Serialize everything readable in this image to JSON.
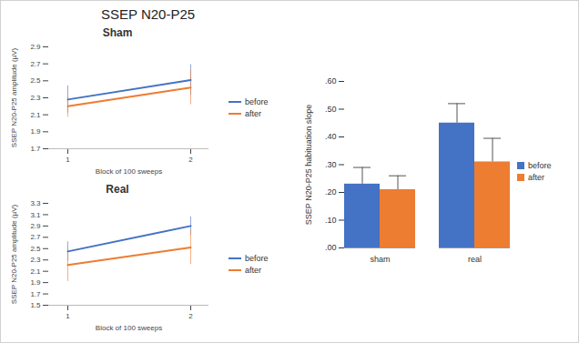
{
  "title": "SSEP N20-P25",
  "chart_data": [
    {
      "type": "line",
      "title": "Sham",
      "x_label": "Block of 100 sweeps",
      "y_label": "SSEP N20-P25 amplitude (µV)",
      "categories": [
        "1",
        "2"
      ],
      "series": [
        {
          "name": "before",
          "color": "#4472c4",
          "values": [
            2.28,
            2.51
          ],
          "errors": [
            0.16,
            0.18
          ]
        },
        {
          "name": "after",
          "color": "#ed7d31",
          "values": [
            2.2,
            2.42
          ],
          "errors": [
            0.13,
            0.2
          ]
        }
      ],
      "ylim": [
        1.7,
        2.9
      ],
      "yticks": [
        1.7,
        1.9,
        2.1,
        2.3,
        2.5,
        2.7,
        2.9
      ],
      "legend": "right"
    },
    {
      "type": "line",
      "title": "Real",
      "x_label": "Block of 100 sweeps",
      "y_label": "SSEP N20-P25 amplitude (µV)",
      "categories": [
        "1",
        "2"
      ],
      "series": [
        {
          "name": "before",
          "color": "#4472c4",
          "values": [
            2.45,
            2.9
          ],
          "errors": [
            0.17,
            0.16
          ]
        },
        {
          "name": "after",
          "color": "#ed7d31",
          "values": [
            2.21,
            2.52
          ],
          "errors": [
            0.29,
            0.3
          ]
        }
      ],
      "ylim": [
        1.5,
        3.3
      ],
      "yticks": [
        1.5,
        1.7,
        1.9,
        2.1,
        2.3,
        2.5,
        2.7,
        2.9,
        3.1,
        3.3
      ],
      "legend": "right"
    },
    {
      "type": "bar",
      "y_label": "SSEP N20-P25 habituation slope",
      "categories": [
        "sham",
        "real"
      ],
      "series": [
        {
          "name": "before",
          "color": "#4472c4",
          "values": [
            0.23,
            0.45
          ],
          "errors": [
            0.06,
            0.07
          ]
        },
        {
          "name": "after",
          "color": "#ed7d31",
          "values": [
            0.21,
            0.31
          ],
          "errors": [
            0.05,
            0.085
          ]
        }
      ],
      "ylim": [
        0,
        0.6
      ],
      "yticks": [
        {
          "value": 0,
          "label": ".00"
        },
        {
          "value": 0.1,
          "label": ".10"
        },
        {
          "value": 0.2,
          "label": ".20"
        },
        {
          "value": 0.3,
          "label": ".30"
        },
        {
          "value": 0.4,
          "label": ".40"
        },
        {
          "value": 0.5,
          "label": ".50"
        },
        {
          "value": 0.6,
          "label": ".60"
        }
      ],
      "legend": "right"
    }
  ]
}
